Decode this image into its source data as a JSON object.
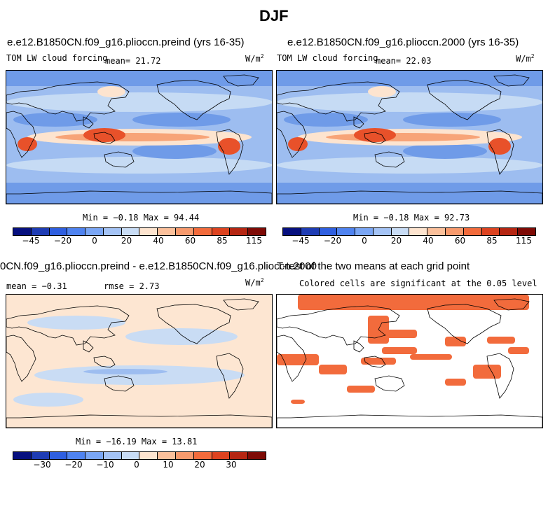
{
  "figure": {
    "title": "DJF"
  },
  "panel_tl": {
    "case_title": "e.e12.B1850CN.f09_g16.plioccn.preind (yrs 16-35)",
    "field_label": "TOM LW cloud forcing",
    "mean_text": "mean=  21.72",
    "units_base": "W/m",
    "units_exp": "2",
    "minmax_text": "Min =  −0.18 Max =  94.44"
  },
  "panel_tr": {
    "case_title": "e.e12.B1850CN.f09_g16.plioccn.2000 (yrs 16-35)",
    "field_label": "TOM LW cloud forcing",
    "mean_text": "mean=  22.03",
    "units_base": "W/m",
    "units_exp": "2",
    "minmax_text": "Min =  −0.18 Max =  92.73"
  },
  "panel_bl": {
    "diff_title": "0CN.f09_g16.plioccn.preind - e.e12.B1850CN.f09_g16.plioccn.2000",
    "mean_text": "mean =  −0.31",
    "rmse_text": "rmse =   2.73",
    "units_base": "W/m",
    "units_exp": "2",
    "minmax_text": "Min = −16.19 Max =  13.81"
  },
  "panel_br": {
    "ttest_title": "T-test of the two means at each grid point",
    "note": "Colored cells are significant at the 0.05 level"
  },
  "colorbar_abs": {
    "colors": [
      "#07107f",
      "#1e3cb4",
      "#2f5fe0",
      "#4f83f0",
      "#7aa6f5",
      "#a4c3f5",
      "#c8dcf5",
      "#fde4cf",
      "#fbc09b",
      "#f79a6d",
      "#f26b3c",
      "#dd4320",
      "#b52612",
      "#7e0a05"
    ],
    "tick_labels": [
      "−45",
      "−20",
      "0",
      "20",
      "40",
      "60",
      "85",
      "115"
    ]
  },
  "colorbar_diff": {
    "colors": [
      "#07107f",
      "#1e3cb4",
      "#2f5fe0",
      "#4f83f0",
      "#7aa6f5",
      "#a4c3f5",
      "#c8dcf5",
      "#fde4cf",
      "#fbc09b",
      "#f79a6d",
      "#f26b3c",
      "#dd4320",
      "#b52612",
      "#7e0a05"
    ],
    "tick_labels": [
      "−30",
      "−20",
      "−10",
      "0",
      "10",
      "20",
      "30"
    ]
  },
  "map_colors": {
    "ocean_low": "#6f9be8",
    "ocean_mid": "#9dbdf0",
    "ocean_pale": "#c6dbf4",
    "warm_pale": "#fde4cf",
    "warm_mid": "#f7a478",
    "warm_high": "#e8512a",
    "diff_bg": "#fde6d2",
    "diff_blue": "#c9dcf4",
    "diff_blue_deep": "#9dbdf0",
    "sig_color": "#f26b3c"
  }
}
